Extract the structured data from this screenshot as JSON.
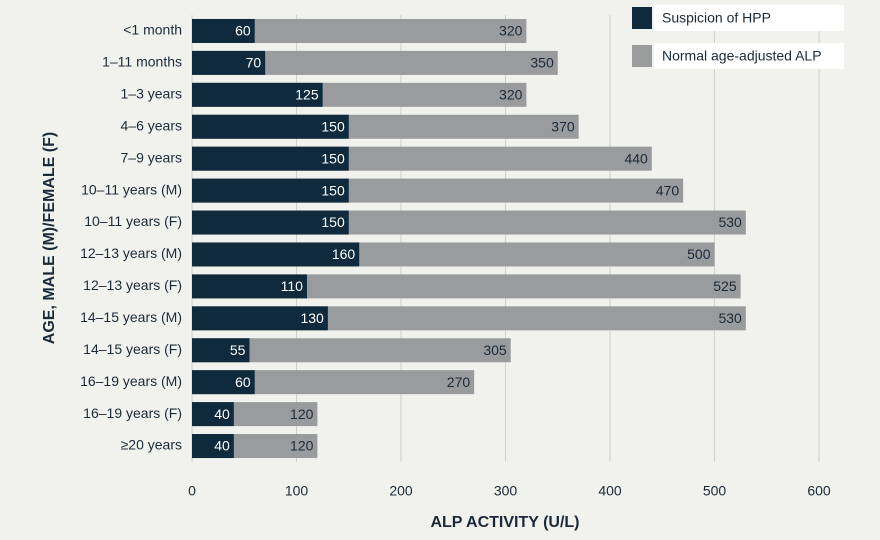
{
  "chart_data": {
    "type": "bar",
    "orientation": "horizontal",
    "barmode": "overlay",
    "categories": [
      "<1 month",
      "1–11 months",
      "1–3 years",
      "4–6 years",
      "7–9 years",
      "10–11 years (M)",
      "10–11 years (F)",
      "12–13 years (M)",
      "12–13 years (F)",
      "14–15 years (M)",
      "14–15 years (F)",
      "16–19 years (M)",
      "16–19 years (F)",
      "≥20 years"
    ],
    "series": [
      {
        "name": "Normal age-adjusted ALP",
        "color": "#9a9b9d",
        "values": [
          320,
          350,
          320,
          370,
          440,
          470,
          530,
          500,
          525,
          530,
          305,
          270,
          120,
          120
        ]
      },
      {
        "name": "Suspicion of HPP",
        "color": "#0e2a3c",
        "values": [
          60,
          70,
          125,
          150,
          150,
          150,
          150,
          160,
          110,
          130,
          55,
          60,
          40,
          40
        ]
      }
    ],
    "xlim": [
      0,
      600
    ],
    "xticks": [
      0,
      100,
      200,
      300,
      400,
      500,
      600
    ],
    "grid": true,
    "xlabel": "ALP ACTIVITY (U/L)",
    "ylabel": "AGE, MALE (M)/FEMALE (F)",
    "legend": "top-right"
  }
}
